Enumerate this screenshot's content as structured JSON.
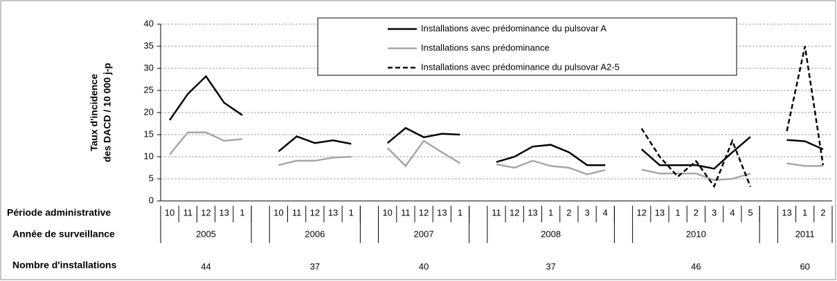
{
  "chart_data": {
    "type": "line",
    "ylabel": [
      "Taux d'incidence",
      "des DACD / 10 000 j-p"
    ],
    "categories": [
      "10",
      "11",
      "12",
      "13",
      "1",
      null,
      "10",
      "11",
      "12",
      "13",
      "1",
      null,
      "10",
      "11",
      "12",
      "13",
      "1",
      null,
      "11",
      "12",
      "13",
      "1",
      "2",
      "3",
      "4",
      null,
      "12",
      "13",
      "1",
      "2",
      "3",
      "4",
      "5",
      null,
      "13",
      "1",
      "2"
    ],
    "series": [
      {
        "name": "Installations avec prédominance du pulsovar A",
        "color": "#000000",
        "dash": false,
        "values": [
          18.3,
          24.2,
          28.2,
          22.2,
          19.4,
          null,
          11.2,
          14.6,
          13.1,
          13.7,
          12.9,
          null,
          13.1,
          16.5,
          14.4,
          15.2,
          15.0,
          null,
          8.8,
          10.0,
          12.3,
          12.7,
          11.0,
          8.1,
          8.1,
          null,
          11.7,
          8.1,
          8.1,
          8.1,
          7.3,
          11.0,
          14.5,
          null,
          13.8,
          13.5,
          11.7
        ]
      },
      {
        "name": "Installations sans prédominance",
        "color": "#a6a6a6",
        "dash": false,
        "values": [
          10.5,
          15.5,
          15.5,
          13.6,
          14.0,
          null,
          8.1,
          9.1,
          9.1,
          9.8,
          10.0,
          null,
          12.0,
          7.9,
          13.6,
          11.0,
          8.5,
          null,
          8.3,
          7.5,
          9.1,
          7.9,
          7.5,
          6.0,
          7.0,
          null,
          7.1,
          6.2,
          6.2,
          6.2,
          4.7,
          5.0,
          6.2,
          null,
          8.5,
          7.9,
          7.9
        ]
      },
      {
        "name": "Installations avec prédominance du pulsovar A2-5",
        "color": "#000000",
        "dash": true,
        "values": [
          null,
          null,
          null,
          null,
          null,
          null,
          null,
          null,
          null,
          null,
          null,
          null,
          null,
          null,
          null,
          null,
          null,
          null,
          null,
          null,
          null,
          null,
          null,
          null,
          null,
          null,
          16.4,
          10.0,
          5.5,
          9.0,
          3.3,
          13.6,
          3.2,
          null,
          15.8,
          35.0,
          8.1
        ]
      }
    ],
    "ylim": [
      0,
      40
    ],
    "yticks": [
      0,
      5,
      10,
      15,
      20,
      25,
      30,
      35,
      40
    ],
    "grid": true,
    "table": {
      "period_label": "Période administrative",
      "year_label": "Année de surveillance",
      "count_label": "Nombre d'installations",
      "years": [
        "2005",
        "2006",
        "2007",
        "2008",
        "2010",
        "2011"
      ],
      "counts": [
        44,
        37,
        40,
        37,
        46,
        60
      ]
    }
  }
}
